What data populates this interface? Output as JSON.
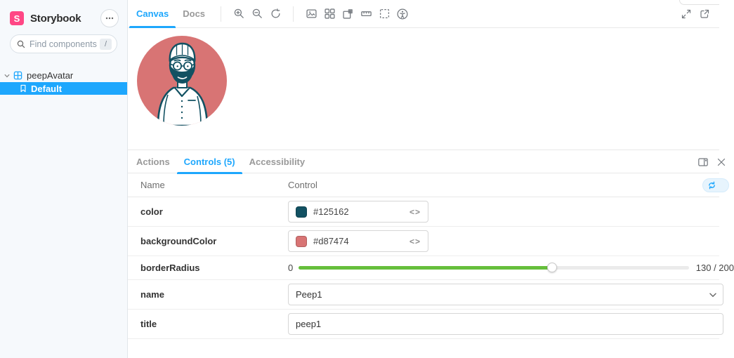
{
  "app": {
    "brand": "Storybook"
  },
  "sidebar": {
    "search": {
      "placeholder": "Find components",
      "shortcut": "/"
    },
    "tree": {
      "component": "peepAvatar",
      "story": "Default"
    }
  },
  "toolbar": {
    "canvas": "Canvas",
    "docs": "Docs"
  },
  "panel": {
    "tabs": {
      "actions": "Actions",
      "controls": "Controls (5)",
      "accessibility": "Accessibility"
    },
    "header": {
      "name": "Name",
      "control": "Control"
    },
    "rows": {
      "color": {
        "label": "color",
        "value": "#125162"
      },
      "backgroundColor": {
        "label": "backgroundColor",
        "value": "#d87474"
      },
      "borderRadius": {
        "label": "borderRadius",
        "min": "0",
        "value": 130,
        "max": 200,
        "display": "130 / 200"
      },
      "name": {
        "label": "name",
        "value": "Peep1"
      },
      "title": {
        "label": "title",
        "value": "peep1"
      }
    }
  },
  "icons": {
    "code": "<>"
  },
  "colors": {
    "accent": "#1ea7fd",
    "brand": "#ff4785",
    "positive": "#66bf3c",
    "avatar_background": "#d87474",
    "avatar_ink": "#125162"
  }
}
